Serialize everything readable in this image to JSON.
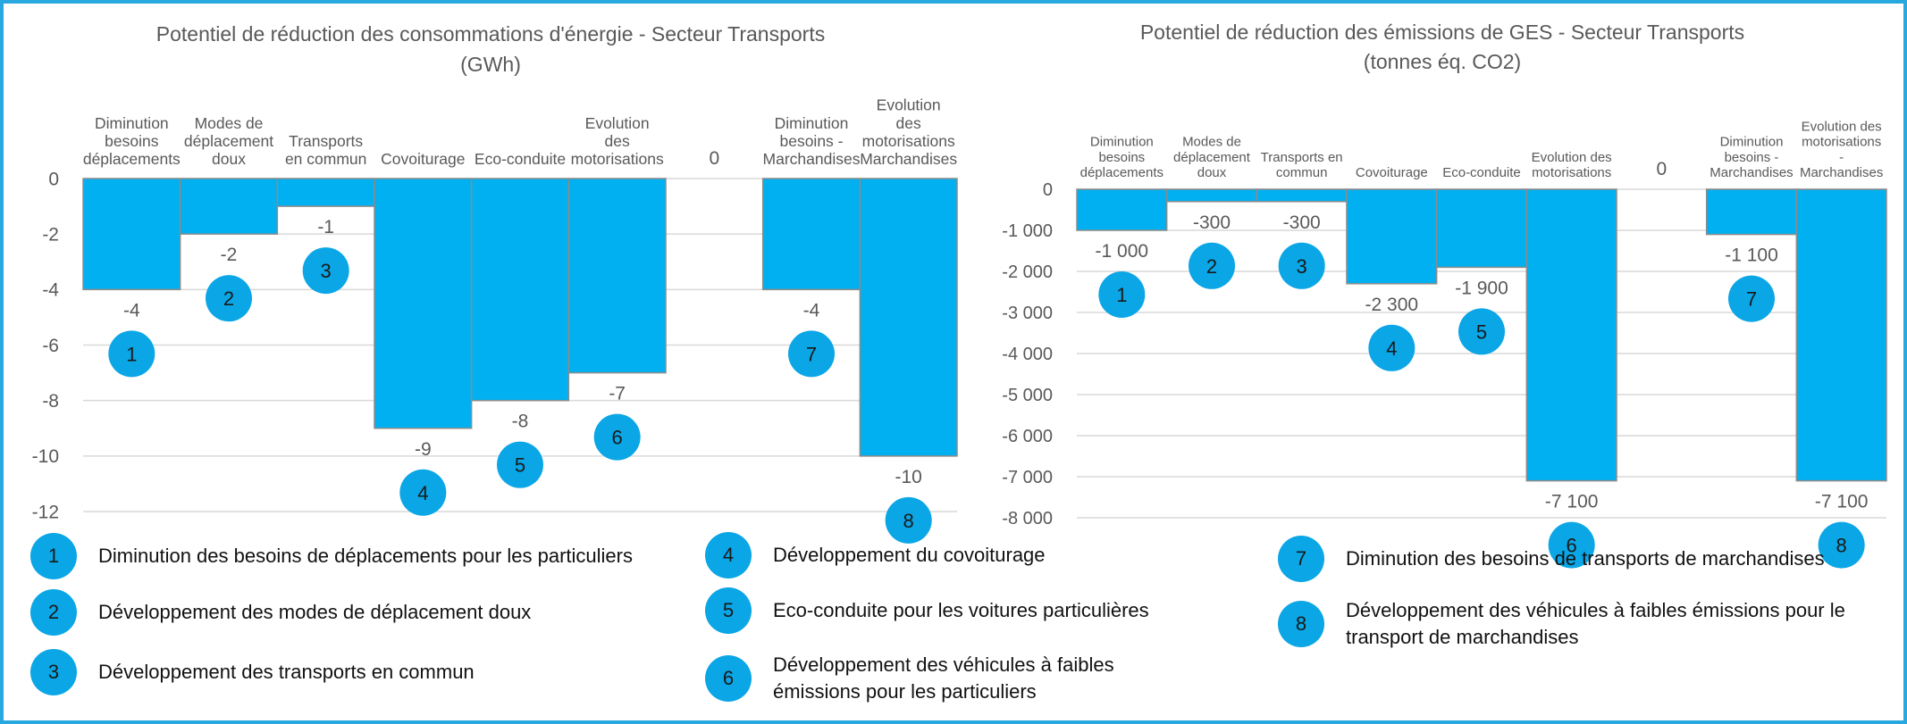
{
  "chart_data": [
    {
      "type": "bar",
      "title": "Potentiel de réduction des consommations d'énergie  - Secteur Transports",
      "subtitle": "(GWh)",
      "categories": [
        "Diminution besoins déplacements",
        "Modes de déplacement doux",
        "Transports en commun",
        "Covoiturage",
        "Eco-conduite",
        "Evolution des motorisations",
        null,
        "Diminution besoins - Marchandises",
        "Evolution des motorisations Marchandises"
      ],
      "values": [
        -4,
        -2,
        -1,
        -9,
        -8,
        -7,
        0,
        -4,
        -10
      ],
      "badges": [
        "1",
        "2",
        "3",
        "4",
        "5",
        "6",
        null,
        "7",
        "8"
      ],
      "color": "#00b0f0",
      "ylim": [
        -12,
        0
      ],
      "yticks": [
        0,
        -2,
        -4,
        -6,
        -8,
        -10,
        -12
      ],
      "grid": true
    },
    {
      "type": "bar",
      "title": "Potentiel de réduction des émissions de GES - Secteur Transports",
      "subtitle": "(tonnes éq. CO2)",
      "categories": [
        "Diminution besoins déplacements",
        "Modes de déplacement doux",
        "Transports en commun",
        "Covoiturage",
        "Eco-conduite",
        "Evolution des motorisations",
        null,
        "Diminution besoins - Marchandises",
        "Evolution des motorisations - Marchandises"
      ],
      "values": [
        -1000,
        -300,
        -300,
        -2300,
        -1900,
        -7100,
        0,
        -1100,
        -7100
      ],
      "value_labels": [
        "-1 000",
        "-300",
        "-300",
        "-2 300",
        "-1 900",
        "-7 100",
        "0",
        "-1 100",
        "-7 100"
      ],
      "badges": [
        "1",
        "2",
        "3",
        "4",
        "5",
        "6",
        null,
        "7",
        "8"
      ],
      "color": "#00b0f0",
      "ylim": [
        -8000,
        0
      ],
      "yticks": [
        0,
        {
          "value": -1000,
          "label": "-1 000"
        },
        {
          "value": -2000,
          "label": "-2 000"
        },
        {
          "value": -3000,
          "label": "-3 000"
        },
        {
          "value": -4000,
          "label": "-4 000"
        },
        {
          "value": -5000,
          "label": "-5 000"
        },
        {
          "value": -6000,
          "label": "-6 000"
        },
        {
          "value": -7000,
          "label": "-7 000"
        },
        {
          "value": -8000,
          "label": "-8 000"
        }
      ],
      "grid": true
    }
  ],
  "legend": [
    {
      "number": "1",
      "text": "Diminution des besoins de déplacements pour les particuliers"
    },
    {
      "number": "2",
      "text": "Développement des modes de déplacement doux"
    },
    {
      "number": "3",
      "text": "Développement des transports en commun"
    },
    {
      "number": "4",
      "text": "Développement du covoiturage"
    },
    {
      "number": "5",
      "text": "Eco-conduite pour les voitures particulières"
    },
    {
      "number": "6",
      "text": "Développement des véhicules à faibles émissions pour les particuliers"
    },
    {
      "number": "7",
      "text": "Diminution des besoins de transports de marchandises"
    },
    {
      "number": "8",
      "text": "Développement des véhicules à faibles émissions pour le transport de marchandises"
    }
  ]
}
